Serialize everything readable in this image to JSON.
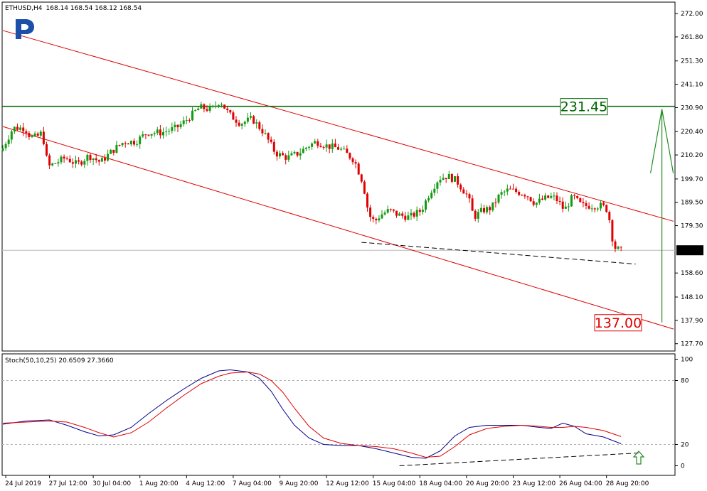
{
  "header": {
    "symbol": "ETHUSD,H4",
    "ohlc": "168.14 168.54 168.12 168.54",
    "indicator": "Stoch(50,10,25) 20.6509 27.3660"
  },
  "colors": {
    "bull": "#129B12",
    "bear": "#E00000",
    "channel": "#E00000",
    "resistance": "#006400",
    "arrow": "#228B22",
    "stoch_main": "#00008B",
    "stoch_signal": "#E00000",
    "logo": "#1B4FA8"
  },
  "icons": {
    "logo": "roboforex-logo-icon",
    "up": "up-arrow-icon"
  },
  "chart_data": [
    {
      "type": "candlestick",
      "title": "ETHUSD,H4",
      "ylim": [
        124.5,
        277.0
      ],
      "y_ticks": [
        "272.00",
        "261.80",
        "251.30",
        "241.10",
        "230.90",
        "220.40",
        "210.20",
        "199.70",
        "189.50",
        "179.30",
        "168.54",
        "158.60",
        "148.10",
        "137.90",
        "127.70"
      ],
      "x_ticks": [
        "24 Jul 2019",
        "27 Jul 12:00",
        "30 Jul 04:00",
        "1 Aug 20:00",
        "4 Aug 12:00",
        "7 Aug 04:00",
        "9 Aug 20:00",
        "12 Aug 12:00",
        "15 Aug 04:00",
        "18 Aug 04:00",
        "20 Aug 20:00",
        "23 Aug 12:00",
        "26 Aug 04:00",
        "28 Aug 20:00"
      ],
      "x_tick_bars": [
        1,
        16,
        31,
        47,
        63,
        79,
        95,
        111,
        127,
        143,
        159,
        175,
        191,
        207
      ],
      "price_path": [
        [
          0,
          212
        ],
        [
          4,
          222
        ],
        [
          8,
          222
        ],
        [
          10,
          218
        ],
        [
          12,
          218
        ],
        [
          14,
          220
        ],
        [
          16,
          205
        ],
        [
          22,
          209
        ],
        [
          26,
          206
        ],
        [
          30,
          210
        ],
        [
          34,
          207
        ],
        [
          38,
          212
        ],
        [
          42,
          216
        ],
        [
          46,
          216
        ],
        [
          50,
          220
        ],
        [
          55,
          220
        ],
        [
          60,
          222
        ],
        [
          63,
          225
        ],
        [
          68,
          231
        ],
        [
          72,
          230
        ],
        [
          75,
          234
        ],
        [
          78,
          228
        ],
        [
          82,
          224
        ],
        [
          86,
          226
        ],
        [
          90,
          220
        ],
        [
          94,
          211
        ],
        [
          98,
          209
        ],
        [
          102,
          211
        ],
        [
          105,
          214
        ],
        [
          108,
          216
        ],
        [
          112,
          214
        ],
        [
          116,
          213
        ],
        [
          118,
          211
        ],
        [
          121,
          208
        ],
        [
          124,
          198
        ],
        [
          126,
          184
        ],
        [
          128,
          181
        ],
        [
          130,
          184
        ],
        [
          133,
          186
        ],
        [
          136,
          184
        ],
        [
          140,
          183
        ],
        [
          144,
          186
        ],
        [
          147,
          194
        ],
        [
          150,
          200
        ],
        [
          153,
          201
        ],
        [
          156,
          199
        ],
        [
          160,
          192
        ],
        [
          162,
          183
        ],
        [
          165,
          186
        ],
        [
          168,
          187
        ],
        [
          171,
          193
        ],
        [
          174,
          195
        ],
        [
          177,
          194
        ],
        [
          180,
          193
        ],
        [
          183,
          189
        ],
        [
          186,
          191
        ],
        [
          189,
          192
        ],
        [
          191,
          190
        ],
        [
          193,
          186
        ],
        [
          196,
          192
        ],
        [
          199,
          188
        ],
        [
          203,
          188
        ],
        [
          206,
          188
        ],
        [
          208,
          186
        ],
        [
          210,
          170
        ],
        [
          212,
          168.5
        ]
      ],
      "num_bars": 213,
      "current_price": "168.54",
      "annotations": {
        "upper_target": "231.45",
        "lower_target": "137.00"
      },
      "levels": {
        "upper_target": 231.45,
        "lower_target": 137.0,
        "current": 168.54
      },
      "channel_upper": [
        [
          0,
          264.6
        ],
        [
          230,
          181.2
        ]
      ],
      "channel_lower": [
        [
          0,
          222.6
        ],
        [
          230,
          134.1
        ]
      ],
      "support_line": [
        [
          123,
          172
        ],
        [
          217,
          162.5
        ]
      ],
      "arrow": {
        "bar": 226,
        "from": 137.0,
        "to": 231.45
      }
    },
    {
      "type": "line",
      "title": "Stoch(50,10,25) 20.6509 27.3660",
      "ylim": [
        -9,
        105
      ],
      "y_ticks": [
        "100",
        "80",
        "20",
        "0"
      ],
      "levels": [
        80,
        20
      ],
      "series": [
        {
          "name": "main",
          "path": [
            [
              0,
              39
            ],
            [
              8,
              42
            ],
            [
              16,
              43
            ],
            [
              22,
              38
            ],
            [
              28,
              32
            ],
            [
              33,
              28
            ],
            [
              38,
              29
            ],
            [
              44,
              36
            ],
            [
              50,
              49
            ],
            [
              56,
              61
            ],
            [
              62,
              72
            ],
            [
              68,
              82
            ],
            [
              74,
              89
            ],
            [
              78,
              90
            ],
            [
              84,
              88
            ],
            [
              88,
              82
            ],
            [
              92,
              70
            ],
            [
              96,
              53
            ],
            [
              100,
              38
            ],
            [
              105,
              26
            ],
            [
              110,
              20
            ],
            [
              116,
              19
            ],
            [
              122,
              19
            ],
            [
              128,
              16
            ],
            [
              134,
              12
            ],
            [
              140,
              8
            ],
            [
              145,
              7
            ],
            [
              150,
              14
            ],
            [
              155,
              28
            ],
            [
              160,
              36
            ],
            [
              166,
              38
            ],
            [
              172,
              38
            ],
            [
              178,
              38
            ],
            [
              184,
              36
            ],
            [
              188,
              35
            ],
            [
              192,
              40
            ],
            [
              196,
              37
            ],
            [
              200,
              30
            ],
            [
              206,
              27
            ],
            [
              212,
              20.65
            ]
          ]
        },
        {
          "name": "signal",
          "path": [
            [
              0,
              40
            ],
            [
              8,
              41
            ],
            [
              16,
              42
            ],
            [
              22,
              41
            ],
            [
              28,
              36
            ],
            [
              33,
              31
            ],
            [
              38,
              27
            ],
            [
              44,
              31
            ],
            [
              50,
              41
            ],
            [
              56,
              54
            ],
            [
              62,
              66
            ],
            [
              68,
              77
            ],
            [
              74,
              84
            ],
            [
              78,
              87
            ],
            [
              84,
              88
            ],
            [
              88,
              86
            ],
            [
              92,
              80
            ],
            [
              96,
              69
            ],
            [
              100,
              54
            ],
            [
              105,
              37
            ],
            [
              110,
              26
            ],
            [
              116,
              21
            ],
            [
              122,
              19
            ],
            [
              128,
              18
            ],
            [
              134,
              16
            ],
            [
              140,
              12
            ],
            [
              145,
              8
            ],
            [
              150,
              9
            ],
            [
              155,
              18
            ],
            [
              160,
              29
            ],
            [
              166,
              35
            ],
            [
              172,
              37
            ],
            [
              178,
              38
            ],
            [
              184,
              37
            ],
            [
              188,
              36
            ],
            [
              192,
              36
            ],
            [
              196,
              37
            ],
            [
              200,
              36
            ],
            [
              206,
              33
            ],
            [
              212,
              27.37
            ]
          ]
        }
      ],
      "divergence_line": [
        [
          136,
          0
        ],
        [
          218,
          12
        ]
      ]
    }
  ]
}
